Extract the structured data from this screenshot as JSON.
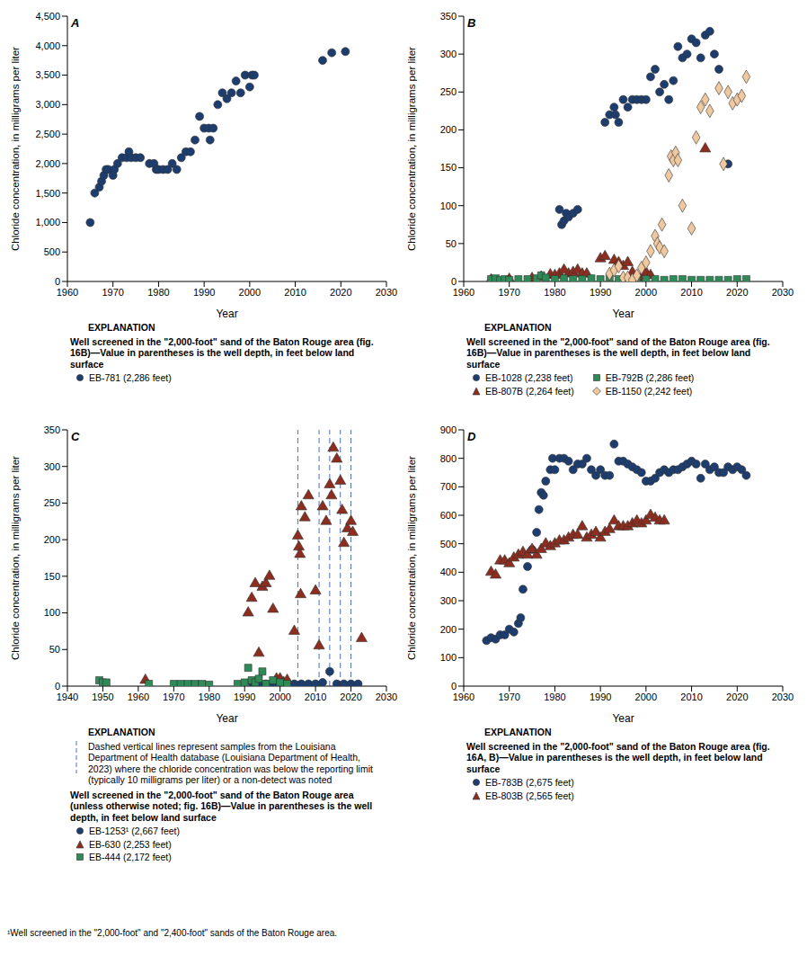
{
  "chart_data": [
    {
      "panel": "A",
      "type": "scatter",
      "grid": false,
      "x_label": "Year",
      "y_label": "Chloride concentration, in milligrams per liter",
      "xlim": [
        1960,
        2030
      ],
      "xticks": [
        1960,
        1970,
        1980,
        1990,
        2000,
        2010,
        2020,
        2030
      ],
      "ylim": [
        0,
        4500
      ],
      "yticks": [
        0,
        500,
        {
          "value": 1000,
          "label": "1,000"
        },
        {
          "value": 1500,
          "label": "1,500"
        },
        {
          "value": 2000,
          "label": "2,000"
        },
        {
          "value": 2500,
          "label": "2,500"
        },
        {
          "value": 3000,
          "label": "3,000"
        },
        {
          "value": 3500,
          "label": "3,500"
        },
        {
          "value": 4000,
          "label": "4,000"
        },
        {
          "value": 4500,
          "label": "4,500"
        }
      ],
      "explanation_heading": "EXPLANATION",
      "explanation_title": "Well screened in the \"2,000-foot\" sand of the Baton Rouge area (fig. 16B)—Value in parentheses is the well depth, in feet below land surface",
      "series": [
        {
          "name": "EB-781 (2,286 feet)",
          "color": "#1c3d6e",
          "marker": "circle",
          "x": [
            1965,
            1966,
            1967,
            1967.5,
            1968,
            1968.5,
            1969,
            1970,
            1970.3,
            1971,
            1972,
            1973,
            1973.5,
            1974,
            1975,
            1976,
            1978,
            1979,
            1979.5,
            1980,
            1981,
            1982,
            1983,
            1984,
            1985,
            1986,
            1987,
            1988,
            1989,
            1990,
            1991,
            1991.3,
            1992,
            1993,
            1994,
            1995,
            1996,
            1997,
            1998,
            1999,
            2000,
            2000.5,
            2001,
            2016,
            2018,
            2021
          ],
          "values": [
            1000,
            1500,
            1600,
            1700,
            1800,
            1900,
            1900,
            1800,
            1900,
            2000,
            2100,
            2100,
            2200,
            2100,
            2100,
            2100,
            2000,
            2000,
            1900,
            1900,
            1900,
            1900,
            2000,
            1900,
            2100,
            2200,
            2200,
            2400,
            2800,
            2600,
            2600,
            2400,
            2600,
            3000,
            3200,
            3100,
            3200,
            3400,
            3200,
            3500,
            3300,
            3500,
            3500,
            3750,
            3880,
            3900
          ]
        }
      ]
    },
    {
      "panel": "B",
      "type": "scatter",
      "grid": false,
      "x_label": "Year",
      "y_label": "Chloride concentration, in milligrams per liter",
      "xlim": [
        1960,
        2030
      ],
      "xticks": [
        1960,
        1970,
        1980,
        1990,
        2000,
        2010,
        2020,
        2030
      ],
      "ylim": [
        0,
        350
      ],
      "yticks": [
        0,
        50,
        100,
        150,
        200,
        250,
        300,
        350
      ],
      "explanation_heading": "EXPLANATION",
      "explanation_title": "Well screened in the \"2,000-foot\" sand of the Baton Rouge area (fig. 16B)—Value in parentheses is the well depth, in feet below land surface",
      "series": [
        {
          "name": "EB-1028 (2,238 feet)",
          "color": "#1c3d6e",
          "marker": "circle",
          "x": [
            1981,
            1981.5,
            1982,
            1982.5,
            1983,
            1984,
            1985,
            1991,
            1992,
            1993,
            1993.3,
            1994,
            1995,
            1996,
            1997,
            1998,
            1999,
            2000,
            2001,
            2002,
            2003,
            2004,
            2005,
            2006,
            2007,
            2008,
            2009,
            2010,
            2011,
            2012,
            2013,
            2014,
            2015,
            2016,
            2018
          ],
          "values": [
            95,
            75,
            80,
            90,
            85,
            90,
            95,
            210,
            220,
            230,
            220,
            210,
            240,
            230,
            240,
            240,
            240,
            240,
            270,
            280,
            250,
            260,
            240,
            265,
            310,
            295,
            300,
            320,
            315,
            295,
            325,
            330,
            300,
            280,
            155
          ]
        },
        {
          "name": "EB-807B (2,264 feet)",
          "color": "#8c2d1f",
          "marker": "triangle",
          "x": [
            1966,
            1970,
            1975,
            1977,
            1979,
            1980,
            1981,
            1982,
            1983,
            1984,
            1985,
            1986,
            1987,
            1990,
            1991,
            1993,
            1994,
            1995,
            1996,
            1997,
            1999,
            2000,
            2001,
            2013
          ],
          "values": [
            2,
            3,
            4,
            6,
            9,
            8,
            10,
            15,
            10,
            12,
            15,
            10,
            10,
            30,
            33,
            28,
            25,
            20,
            25,
            12,
            5,
            12,
            8,
            175
          ]
        },
        {
          "name": "EB-792B (2,286 feet)",
          "color": "#2e8b57",
          "marker": "square",
          "x": [
            1966,
            1967,
            1968,
            1969,
            1970,
            1972,
            1974,
            1976,
            1977,
            1978,
            1980,
            1982,
            1984,
            1986,
            1988,
            1990,
            1992,
            1994,
            1996,
            1998,
            2000,
            2002,
            2004,
            2006,
            2008,
            2010,
            2012,
            2014,
            2016,
            2018,
            2020,
            2022
          ],
          "values": [
            3,
            4,
            2,
            3,
            2,
            3,
            3,
            4,
            8,
            5,
            3,
            4,
            3,
            3,
            4,
            3,
            5,
            3,
            3,
            2,
            3,
            3,
            2,
            3,
            3,
            2,
            2,
            2,
            2,
            2,
            3,
            3
          ]
        },
        {
          "name": "EB-1150 (2,242 feet)",
          "color": "#f0c8a0",
          "marker": "diamond",
          "x": [
            1992,
            1993,
            1994,
            1995,
            1996,
            1997,
            1998,
            1999,
            2000,
            2001,
            2002,
            2002.5,
            2003,
            2003.5,
            2004,
            2005,
            2005.5,
            2006,
            2006.5,
            2007,
            2008,
            2010,
            2011,
            2012,
            2013,
            2014,
            2016,
            2017,
            2018,
            2019,
            2020,
            2021,
            2022
          ],
          "values": [
            10,
            15,
            20,
            5,
            5,
            2,
            8,
            18,
            25,
            40,
            60,
            50,
            45,
            75,
            40,
            140,
            165,
            160,
            170,
            160,
            100,
            70,
            190,
            230,
            240,
            225,
            255,
            155,
            250,
            235,
            240,
            245,
            270
          ]
        }
      ]
    },
    {
      "panel": "C",
      "type": "scatter",
      "grid": false,
      "x_label": "Year",
      "y_label": "Chloride concentration, in milligrams per liter",
      "xlim": [
        1940,
        2030
      ],
      "xticks": [
        1940,
        1950,
        1960,
        1970,
        1980,
        1990,
        2000,
        2010,
        2020,
        2030
      ],
      "ylim": [
        0,
        350
      ],
      "yticks": [
        0,
        50,
        100,
        150,
        200,
        250,
        300,
        350
      ],
      "explanation_heading": "EXPLANATION",
      "reference_lines": {
        "x": [
          2005,
          2011,
          2014,
          2017,
          2020
        ],
        "color": "#4a6fb5",
        "line_style": "dashed",
        "label": "Dashed vertical lines represent samples from the Louisiana Department of Health database (Louisiana Department of Health, 2023) where the chloride concentration was below the reporting limit (typically 10 milligrams per liter) or a non-detect was noted"
      },
      "explanation_title": "Well screened in the \"2,000-foot\" sand of the Baton Rouge area (unless otherwise noted; fig. 16B)—Value in parentheses is the well depth, in feet below land surface",
      "footnote": "¹Well screened in the \"2,000-foot\" and \"2,400-foot\" sands of the Baton Rouge area.",
      "series": [
        {
          "name": "EB-1253¹ (2,667 feet)",
          "color": "#1c3d6e",
          "marker": "circle",
          "x": [
            1992,
            1994,
            1996,
            1998,
            2000,
            2002,
            2004,
            2006,
            2008,
            2010,
            2012,
            2014,
            2016,
            2018,
            2020,
            2022
          ],
          "values": [
            5,
            3,
            3,
            3,
            3,
            3,
            3,
            3,
            3,
            3,
            5,
            20,
            3,
            3,
            3,
            3
          ]
        },
        {
          "name": "EB-630 (2,253 feet)",
          "color": "#8c2d1f",
          "marker": "triangle",
          "x": [
            1962,
            1991,
            1992,
            1993,
            1994,
            1995,
            1996,
            1997,
            1998,
            1999,
            2000,
            2001,
            2002,
            2004,
            2005,
            2005.3,
            2005.6,
            2005.8,
            2006,
            2007,
            2008,
            2010,
            2011,
            2012,
            2013,
            2014,
            2014.5,
            2015,
            2016,
            2017,
            2017.5,
            2018,
            2019,
            2020,
            2020.5,
            2023
          ],
          "values": [
            8,
            100,
            120,
            140,
            45,
            135,
            140,
            150,
            105,
            10,
            10,
            5,
            8,
            75,
            205,
            190,
            180,
            125,
            245,
            230,
            260,
            130,
            55,
            245,
            225,
            275,
            260,
            325,
            310,
            280,
            240,
            195,
            215,
            225,
            210,
            65
          ]
        },
        {
          "name": "EB-444 (2,172 feet)",
          "color": "#2e8b57",
          "marker": "square",
          "x": [
            1949,
            1950,
            1951,
            1963,
            1970,
            1972,
            1974,
            1976,
            1978,
            1980,
            1988,
            1990,
            1991,
            1992,
            1993,
            1994,
            1995,
            1996,
            1998,
            2000,
            2002
          ],
          "values": [
            8,
            5,
            5,
            3,
            3,
            3,
            3,
            3,
            3,
            2,
            3,
            5,
            25,
            8,
            5,
            10,
            20,
            3,
            8,
            5,
            3
          ]
        }
      ]
    },
    {
      "panel": "D",
      "type": "scatter",
      "grid": false,
      "x_label": "Year",
      "y_label": "Chloride concentration, in milligrams per liter",
      "xlim": [
        1960,
        2030
      ],
      "xticks": [
        1960,
        1970,
        1980,
        1990,
        2000,
        2010,
        2020,
        2030
      ],
      "ylim": [
        0,
        900
      ],
      "yticks": [
        0,
        100,
        200,
        300,
        400,
        500,
        600,
        700,
        800,
        900
      ],
      "explanation_heading": "EXPLANATION",
      "explanation_title": "Well screened in the \"2,000-foot\" sand of the Baton Rouge area (fig. 16A, B)—Value in parentheses is the well depth, in feet below land surface",
      "series": [
        {
          "name": "EB-783B (2,675 feet)",
          "color": "#1c3d6e",
          "marker": "circle",
          "x": [
            1965,
            1966,
            1967,
            1968,
            1969,
            1970,
            1971,
            1972,
            1972.5,
            1973,
            1974,
            1975,
            1976,
            1976.5,
            1977,
            1977.5,
            1978,
            1979,
            1979.5,
            1980,
            1981,
            1982,
            1983,
            1984,
            1985,
            1986,
            1987,
            1988,
            1989,
            1990,
            1991,
            1992,
            1993,
            1994,
            1995,
            1996,
            1997,
            1998,
            1999,
            2000,
            2001,
            2002,
            2003,
            2004,
            2005,
            2006,
            2007,
            2008,
            2009,
            2010,
            2011,
            2012,
            2013,
            2014,
            2015,
            2016,
            2017,
            2018,
            2019,
            2020,
            2021,
            2022
          ],
          "values": [
            160,
            170,
            165,
            180,
            180,
            200,
            190,
            220,
            240,
            340,
            420,
            480,
            540,
            620,
            680,
            670,
            720,
            760,
            800,
            760,
            800,
            800,
            790,
            760,
            780,
            780,
            800,
            760,
            740,
            760,
            740,
            740,
            850,
            790,
            790,
            780,
            770,
            760,
            750,
            720,
            720,
            730,
            750,
            760,
            750,
            760,
            760,
            770,
            780,
            790,
            780,
            730,
            780,
            760,
            770,
            750,
            750,
            770,
            760,
            770,
            760,
            740
          ]
        },
        {
          "name": "EB-803B (2,565 feet)",
          "color": "#8c2d1f",
          "marker": "triangle",
          "x": [
            1966,
            1967,
            1968,
            1969,
            1970,
            1971,
            1972,
            1973,
            1974,
            1975,
            1976,
            1977,
            1978,
            1979,
            1980,
            1981,
            1982,
            1983,
            1984,
            1985,
            1986,
            1987,
            1988,
            1989,
            1990,
            1991,
            1992,
            1993,
            1994,
            1995,
            1996,
            1997,
            1998,
            1999,
            2000,
            2001,
            2002,
            2003,
            2004
          ],
          "values": [
            400,
            390,
            440,
            440,
            430,
            450,
            460,
            470,
            460,
            480,
            460,
            480,
            500,
            490,
            500,
            510,
            510,
            520,
            530,
            530,
            560,
            520,
            530,
            540,
            520,
            540,
            550,
            580,
            560,
            560,
            560,
            570,
            580,
            570,
            580,
            600,
            590,
            580,
            580
          ]
        }
      ]
    }
  ]
}
